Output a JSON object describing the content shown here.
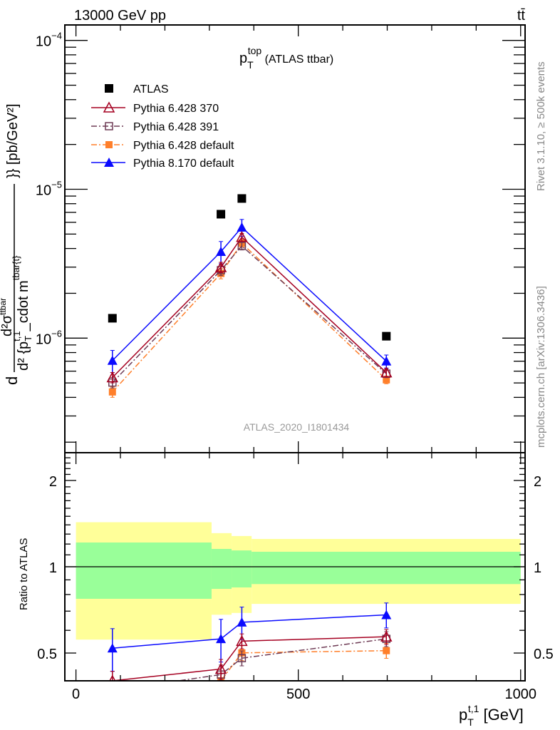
{
  "header": {
    "beam": "13000 GeV pp",
    "process": "tt̄",
    "rivet": "Rivet 3.1.10, ≥ 500k events",
    "source": "mcplots.cern.ch [arXiv:1306.3436]",
    "analysis": "ATLAS_2020_I1801434"
  },
  "chart_data": {
    "type": "line",
    "title": {
      "main": "p",
      "sub": "T",
      "sup": "top",
      "rest": " (ATLAS ttbar)"
    },
    "ylabel": {
      "num": "d²σ",
      "num_sup": "ttbar",
      "den": "d² {p",
      "den_sub": "T",
      "den_sup": "t,1",
      "den_rest": "_cdot m",
      "den_rest_sup": "tbar{t}",
      "tail": "}} [pb/GeV²]"
    },
    "xlabel": {
      "main": "p",
      "sub": "T",
      "sup": "t,1",
      "rest": " [GeV]"
    },
    "ratio_ylabel": "Ratio to ATLAS",
    "x": [
      82,
      326,
      373,
      698
    ],
    "xlim": [
      -25,
      1010
    ],
    "xticks": [
      "0",
      "500",
      "1000"
    ],
    "xtick_values": [
      0,
      500,
      1000
    ],
    "ylim": [
      1.7e-07,
      0.000127
    ],
    "yscale": "log",
    "yticks": [
      {
        "base": "10",
        "exp": "−4",
        "value": 0.0001
      },
      {
        "base": "10",
        "exp": "−5",
        "value": 1e-05
      },
      {
        "base": "10",
        "exp": "−6",
        "value": 1e-06
      }
    ],
    "series": [
      {
        "name": "ATLAS",
        "color": "#000000",
        "marker": "square-filled",
        "line": "none",
        "values": [
          1.36e-06,
          6.8e-06,
          8.67e-06,
          1.03e-06
        ],
        "rel_err": [
          0,
          0,
          0,
          0
        ]
      },
      {
        "name": "Pythia 6.428 370",
        "color": "#a50021",
        "marker": "triangle-open",
        "line": "solid",
        "values": [
          5.44e-07,
          2.99e-06,
          4.77e-06,
          5.87e-07
        ],
        "rel_err": [
          0.08,
          0.08,
          0.06,
          0.06
        ]
      },
      {
        "name": "Pythia 6.428 391",
        "color": "#6e3b55",
        "marker": "square-open",
        "line": "dashdot",
        "values": [
          5.03e-07,
          2.86e-06,
          4.16e-06,
          5.77e-07
        ],
        "rel_err": [
          0.08,
          0.08,
          0.06,
          0.06
        ]
      },
      {
        "name": "Pythia 6.428 default",
        "color": "#ff7f2a",
        "marker": "square-filled-small",
        "line": "dashdot",
        "values": [
          4.35e-07,
          2.72e-06,
          4.34e-06,
          5.25e-07
        ],
        "rel_err": [
          0.08,
          0.08,
          0.06,
          0.06
        ]
      },
      {
        "name": "Pythia 8.170 default",
        "color": "#0a0aff",
        "marker": "triangle-filled",
        "line": "solid",
        "values": [
          7.07e-07,
          3.81e-06,
          5.55e-06,
          7e-07
        ],
        "rel_err": [
          0.17,
          0.17,
          0.13,
          0.1
        ]
      }
    ],
    "ratio": {
      "ylim": [
        0.4,
        2.5
      ],
      "yscale": "log",
      "yticks": [
        "0.5",
        "1",
        "2"
      ],
      "ytick_values": [
        0.5,
        1,
        2
      ],
      "bins": [
        [
          0,
          305
        ],
        [
          305,
          350
        ],
        [
          350,
          395
        ],
        [
          395,
          1000
        ]
      ],
      "band_inner": [
        [
          0.773,
          1.215
        ],
        [
          0.837,
          1.154
        ],
        [
          0.847,
          1.14
        ],
        [
          0.87,
          1.128
        ]
      ],
      "band_outer": [
        [
          0.557,
          1.43
        ],
        [
          0.68,
          1.31
        ],
        [
          0.69,
          1.28
        ],
        [
          0.742,
          1.25
        ]
      ],
      "inner_color": "#99ff99",
      "outer_color": "#ffff99"
    }
  }
}
